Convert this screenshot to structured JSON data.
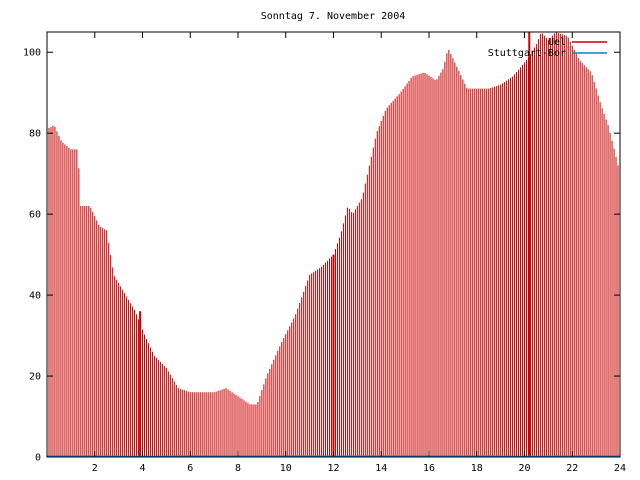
{
  "chart_data": {
    "type": "bar",
    "title": "Sonntag 7. November 2004",
    "xlabel": "",
    "ylabel": "",
    "xlim": [
      0,
      24
    ],
    "ylim": [
      0,
      105
    ],
    "x_ticks": [
      "2",
      "4",
      "6",
      "8",
      "10",
      "12",
      "14",
      "16",
      "18",
      "20",
      "22",
      "24"
    ],
    "y_ticks": [
      "0",
      "20",
      "40",
      "60",
      "80",
      "100"
    ],
    "grid": false,
    "legend_position": "top-right",
    "bar_interval_minutes": 5,
    "series": [
      {
        "name": "Uel",
        "color": "#cc0000",
        "keypoints": [
          [
            0.0,
            81
          ],
          [
            0.3,
            82
          ],
          [
            0.6,
            78
          ],
          [
            1.0,
            76
          ],
          [
            1.3,
            76
          ],
          [
            1.4,
            62
          ],
          [
            1.8,
            62
          ],
          [
            2.2,
            57
          ],
          [
            2.5,
            56
          ],
          [
            2.8,
            45
          ],
          [
            3.2,
            41
          ],
          [
            3.7,
            36
          ],
          [
            4.1,
            30
          ],
          [
            4.5,
            25
          ],
          [
            5.0,
            22
          ],
          [
            5.5,
            17
          ],
          [
            6.0,
            16
          ],
          [
            6.5,
            16
          ],
          [
            7.0,
            16
          ],
          [
            7.5,
            17
          ],
          [
            8.0,
            15
          ],
          [
            8.5,
            13
          ],
          [
            8.8,
            13
          ],
          [
            9.2,
            20
          ],
          [
            9.8,
            28
          ],
          [
            10.4,
            35
          ],
          [
            11.0,
            45
          ],
          [
            11.5,
            47
          ],
          [
            12.0,
            50
          ],
          [
            12.3,
            55
          ],
          [
            12.6,
            62
          ],
          [
            12.8,
            60
          ],
          [
            13.2,
            64
          ],
          [
            13.5,
            72
          ],
          [
            13.8,
            80
          ],
          [
            14.2,
            86
          ],
          [
            14.8,
            90
          ],
          [
            15.3,
            94
          ],
          [
            15.8,
            95
          ],
          [
            16.3,
            93
          ],
          [
            16.6,
            96
          ],
          [
            16.8,
            101
          ],
          [
            17.2,
            96
          ],
          [
            17.6,
            91
          ],
          [
            18.0,
            91
          ],
          [
            18.5,
            91
          ],
          [
            19.0,
            92
          ],
          [
            19.5,
            94
          ],
          [
            19.8,
            96
          ],
          [
            20.2,
            99
          ],
          [
            20.5,
            102
          ],
          [
            20.7,
            105
          ],
          [
            21.0,
            103
          ],
          [
            21.3,
            105
          ],
          [
            21.8,
            104
          ],
          [
            22.3,
            98
          ],
          [
            22.8,
            95
          ],
          [
            23.2,
            87
          ],
          [
            23.5,
            82
          ],
          [
            23.8,
            75
          ],
          [
            24.0,
            70
          ]
        ],
        "spikes": [
          [
            3.9,
            36
          ],
          [
            12.0,
            50
          ],
          [
            20.2,
            105
          ]
        ]
      },
      {
        "name": "Stuttgart-Bor",
        "color": "#0080cc",
        "values": [
          0
        ]
      }
    ]
  }
}
